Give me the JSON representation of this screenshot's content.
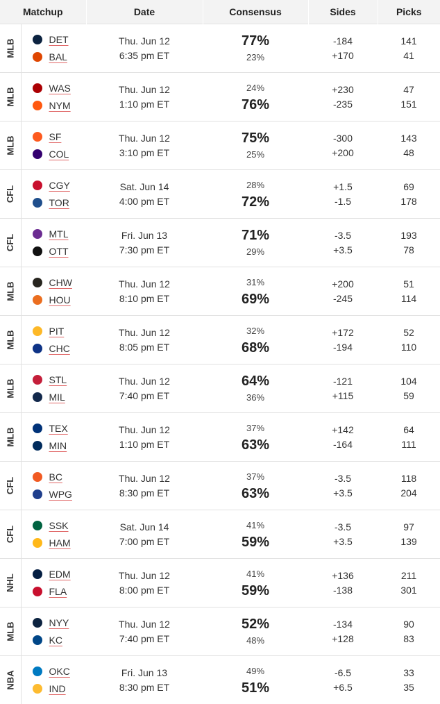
{
  "header": {
    "matchup": "Matchup",
    "date": "Date",
    "consensus": "Consensus",
    "sides": "Sides",
    "picks": "Picks"
  },
  "rows": [
    {
      "league": "MLB",
      "away": {
        "abbr": "DET",
        "color": "#0c2340"
      },
      "home": {
        "abbr": "BAL",
        "color": "#df4601"
      },
      "day": "Thu. Jun 12",
      "time": "6:35 pm ET",
      "away_pct": "77%",
      "home_pct": "23%",
      "away_big": true,
      "away_side": "-184",
      "home_side": "+170",
      "away_picks": "141",
      "home_picks": "41"
    },
    {
      "league": "MLB",
      "away": {
        "abbr": "WAS",
        "color": "#ab0003"
      },
      "home": {
        "abbr": "NYM",
        "color": "#ff5910"
      },
      "day": "Thu. Jun 12",
      "time": "1:10 pm ET",
      "away_pct": "24%",
      "home_pct": "76%",
      "away_big": false,
      "away_side": "+230",
      "home_side": "-235",
      "away_picks": "47",
      "home_picks": "151"
    },
    {
      "league": "MLB",
      "away": {
        "abbr": "SF",
        "color": "#fd5a1e"
      },
      "home": {
        "abbr": "COL",
        "color": "#33006f"
      },
      "day": "Thu. Jun 12",
      "time": "3:10 pm ET",
      "away_pct": "75%",
      "home_pct": "25%",
      "away_big": true,
      "away_side": "-300",
      "home_side": "+200",
      "away_picks": "143",
      "home_picks": "48"
    },
    {
      "league": "CFL",
      "away": {
        "abbr": "CGY",
        "color": "#c8102e"
      },
      "home": {
        "abbr": "TOR",
        "color": "#1f4e8c"
      },
      "day": "Sat. Jun 14",
      "time": "4:00 pm ET",
      "away_pct": "28%",
      "home_pct": "72%",
      "away_big": false,
      "away_side": "+1.5",
      "home_side": "-1.5",
      "away_picks": "69",
      "home_picks": "178"
    },
    {
      "league": "CFL",
      "away": {
        "abbr": "MTL",
        "color": "#6b2c91"
      },
      "home": {
        "abbr": "OTT",
        "color": "#111111"
      },
      "day": "Fri. Jun 13",
      "time": "7:30 pm ET",
      "away_pct": "71%",
      "home_pct": "29%",
      "away_big": true,
      "away_side": "-3.5",
      "home_side": "+3.5",
      "away_picks": "193",
      "home_picks": "78"
    },
    {
      "league": "MLB",
      "away": {
        "abbr": "CHW",
        "color": "#27251f"
      },
      "home": {
        "abbr": "HOU",
        "color": "#eb6e1f"
      },
      "day": "Thu. Jun 12",
      "time": "8:10 pm ET",
      "away_pct": "31%",
      "home_pct": "69%",
      "away_big": false,
      "away_side": "+200",
      "home_side": "-245",
      "away_picks": "51",
      "home_picks": "114"
    },
    {
      "league": "MLB",
      "away": {
        "abbr": "PIT",
        "color": "#fdb827"
      },
      "home": {
        "abbr": "CHC",
        "color": "#0e3386"
      },
      "day": "Thu. Jun 12",
      "time": "8:05 pm ET",
      "away_pct": "32%",
      "home_pct": "68%",
      "away_big": false,
      "away_side": "+172",
      "home_side": "-194",
      "away_picks": "52",
      "home_picks": "110"
    },
    {
      "league": "MLB",
      "away": {
        "abbr": "STL",
        "color": "#c41e3a"
      },
      "home": {
        "abbr": "MIL",
        "color": "#12284b"
      },
      "day": "Thu. Jun 12",
      "time": "7:40 pm ET",
      "away_pct": "64%",
      "home_pct": "36%",
      "away_big": true,
      "away_side": "-121",
      "home_side": "+115",
      "away_picks": "104",
      "home_picks": "59"
    },
    {
      "league": "MLB",
      "away": {
        "abbr": "TEX",
        "color": "#003278"
      },
      "home": {
        "abbr": "MIN",
        "color": "#002b5c"
      },
      "day": "Thu. Jun 12",
      "time": "1:10 pm ET",
      "away_pct": "37%",
      "home_pct": "63%",
      "away_big": false,
      "away_side": "+142",
      "home_side": "-164",
      "away_picks": "64",
      "home_picks": "111"
    },
    {
      "league": "CFL",
      "away": {
        "abbr": "BC",
        "color": "#f15a22"
      },
      "home": {
        "abbr": "WPG",
        "color": "#1f3f8c"
      },
      "day": "Thu. Jun 12",
      "time": "8:30 pm ET",
      "away_pct": "37%",
      "home_pct": "63%",
      "away_big": false,
      "away_side": "-3.5",
      "home_side": "+3.5",
      "away_picks": "118",
      "home_picks": "204"
    },
    {
      "league": "CFL",
      "away": {
        "abbr": "SSK",
        "color": "#006341"
      },
      "home": {
        "abbr": "HAM",
        "color": "#ffb819"
      },
      "day": "Sat. Jun 14",
      "time": "7:00 pm ET",
      "away_pct": "41%",
      "home_pct": "59%",
      "away_big": false,
      "away_side": "-3.5",
      "home_side": "+3.5",
      "away_picks": "97",
      "home_picks": "139"
    },
    {
      "league": "NHL",
      "away": {
        "abbr": "EDM",
        "color": "#041e42"
      },
      "home": {
        "abbr": "FLA",
        "color": "#c8102e"
      },
      "day": "Thu. Jun 12",
      "time": "8:00 pm ET",
      "away_pct": "41%",
      "home_pct": "59%",
      "away_big": false,
      "away_side": "+136",
      "home_side": "-138",
      "away_picks": "211",
      "home_picks": "301"
    },
    {
      "league": "MLB",
      "away": {
        "abbr": "NYY",
        "color": "#0c2340"
      },
      "home": {
        "abbr": "KC",
        "color": "#004687"
      },
      "day": "Thu. Jun 12",
      "time": "7:40 pm ET",
      "away_pct": "52%",
      "home_pct": "48%",
      "away_big": true,
      "away_side": "-134",
      "home_side": "+128",
      "away_picks": "90",
      "home_picks": "83"
    },
    {
      "league": "NBA",
      "away": {
        "abbr": "OKC",
        "color": "#007ac1"
      },
      "home": {
        "abbr": "IND",
        "color": "#fdbb30"
      },
      "day": "Fri. Jun 13",
      "time": "8:30 pm ET",
      "away_pct": "49%",
      "home_pct": "51%",
      "away_big": false,
      "away_side": "-6.5",
      "home_side": "+6.5",
      "away_picks": "33",
      "home_picks": "35"
    }
  ]
}
